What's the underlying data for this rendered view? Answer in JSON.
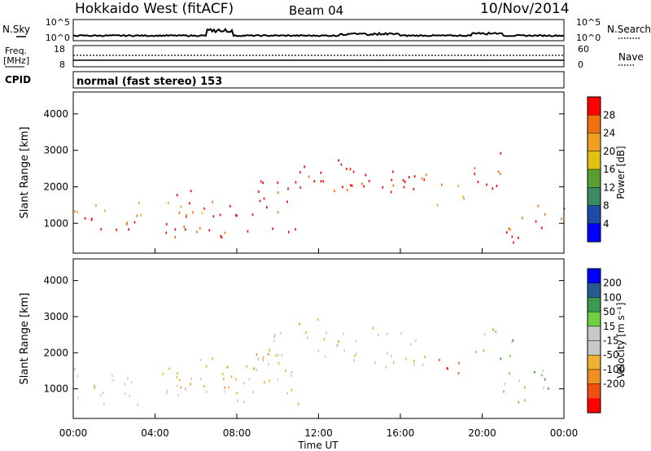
{
  "header": {
    "station": "Hokkaido West (fitACF)",
    "beam": "Beam 04",
    "date": "10/Nov/2014"
  },
  "top_panels": {
    "nsky_label": "N.Sky",
    "nsky_ticks": [
      "10^5",
      "10^0"
    ],
    "nsearch_label": "N.Search",
    "nsearch_ticks": [
      "10^5",
      "10^0"
    ],
    "freq_label_1": "Freq.",
    "freq_label_2": "[MHz]",
    "freq_ticks": [
      "18",
      "8"
    ],
    "nave_label": "Nave",
    "nave_ticks": [
      "60",
      "0"
    ],
    "cpid_label": "CPID",
    "cpid_text": "normal (fast stereo) 153"
  },
  "chart_data": [
    {
      "type": "heatmap",
      "parameter": "Power",
      "ylabel": "Slant Range [km]",
      "ylim": [
        180,
        4600
      ],
      "yticks": [
        "1000",
        "2000",
        "3000",
        "4000"
      ],
      "colorbar_label": "Power [dB]",
      "colorbar_ticks": [
        "4",
        "8",
        "12",
        "16",
        "20",
        "24",
        "28"
      ],
      "colorbar_range": [
        0,
        32
      ],
      "colors": [
        "#0000ff",
        "#1e4aa8",
        "#3c8a64",
        "#5a9e32",
        "#e0c010",
        "#f0a020",
        "#f07010",
        "#ff0000"
      ],
      "regions": [
        {
          "t": [
            0,
            11
          ],
          "r": [
            600,
            1200
          ],
          "level": 7
        },
        {
          "t": [
            0,
            7
          ],
          "r": [
            1200,
            1650
          ],
          "level": 5
        },
        {
          "t": [
            5,
            11
          ],
          "r": [
            1200,
            2000
          ],
          "level": 7
        },
        {
          "t": [
            8,
            10.5
          ],
          "r": [
            1600,
            2200
          ],
          "level": 7
        },
        {
          "t": [
            10.5,
            17.3
          ],
          "r": [
            1900,
            2600
          ],
          "level": 7
        },
        {
          "t": [
            11,
            13.2
          ],
          "r": [
            2000,
            2800
          ],
          "level": 7
        },
        {
          "t": [
            13,
            17.3
          ],
          "r": [
            1800,
            2500
          ],
          "level": 7
        },
        {
          "t": [
            17.3,
            19.3
          ],
          "r": [
            1500,
            2100
          ],
          "level": 5
        },
        {
          "t": [
            19.6,
            21.5
          ],
          "r": [
            1800,
            3000
          ],
          "level": 7
        },
        {
          "t": [
            21,
            24
          ],
          "r": [
            500,
            1600
          ],
          "level": 7
        }
      ]
    },
    {
      "type": "heatmap",
      "parameter": "Velocity",
      "ylabel": "Slant Range [km]",
      "ylim": [
        180,
        4600
      ],
      "yticks": [
        "1000",
        "2000",
        "3000",
        "4000"
      ],
      "xlabel": "Time UT",
      "xticks": [
        "00:00",
        "04:00",
        "08:00",
        "12:00",
        "16:00",
        "20:00",
        "00:00"
      ],
      "xlim": [
        0,
        24
      ],
      "colorbar_label": "Velocity [m s⁻¹]",
      "colorbar_ticks": [
        "200",
        "100",
        "50",
        "15",
        "-15",
        "-50",
        "-100",
        "-200"
      ],
      "colorbar_range": [
        -250,
        250
      ],
      "colors": [
        "#ff0000",
        "#f05010",
        "#f09020",
        "#f0b030",
        "#c8c8c8",
        "#c8c8c8",
        "#70d040",
        "#3c9a50",
        "#285a90",
        "#0000ff"
      ],
      "regions": [
        {
          "t": [
            0,
            11
          ],
          "r": [
            600,
            1600
          ],
          "level": 4
        },
        {
          "t": [
            4,
            11
          ],
          "r": [
            1000,
            2000
          ],
          "level": 3
        },
        {
          "t": [
            9,
            17.3
          ],
          "r": [
            1600,
            2800
          ],
          "level": 4
        },
        {
          "t": [
            11,
            13
          ],
          "r": [
            2200,
            3000
          ],
          "level": 3
        },
        {
          "t": [
            17.3,
            19.3
          ],
          "r": [
            1400,
            2100
          ],
          "level": 1
        },
        {
          "t": [
            19.6,
            21.5
          ],
          "r": [
            1800,
            3000
          ],
          "level": 6
        },
        {
          "t": [
            21,
            24
          ],
          "r": [
            500,
            1600
          ],
          "level": 6
        }
      ]
    }
  ]
}
